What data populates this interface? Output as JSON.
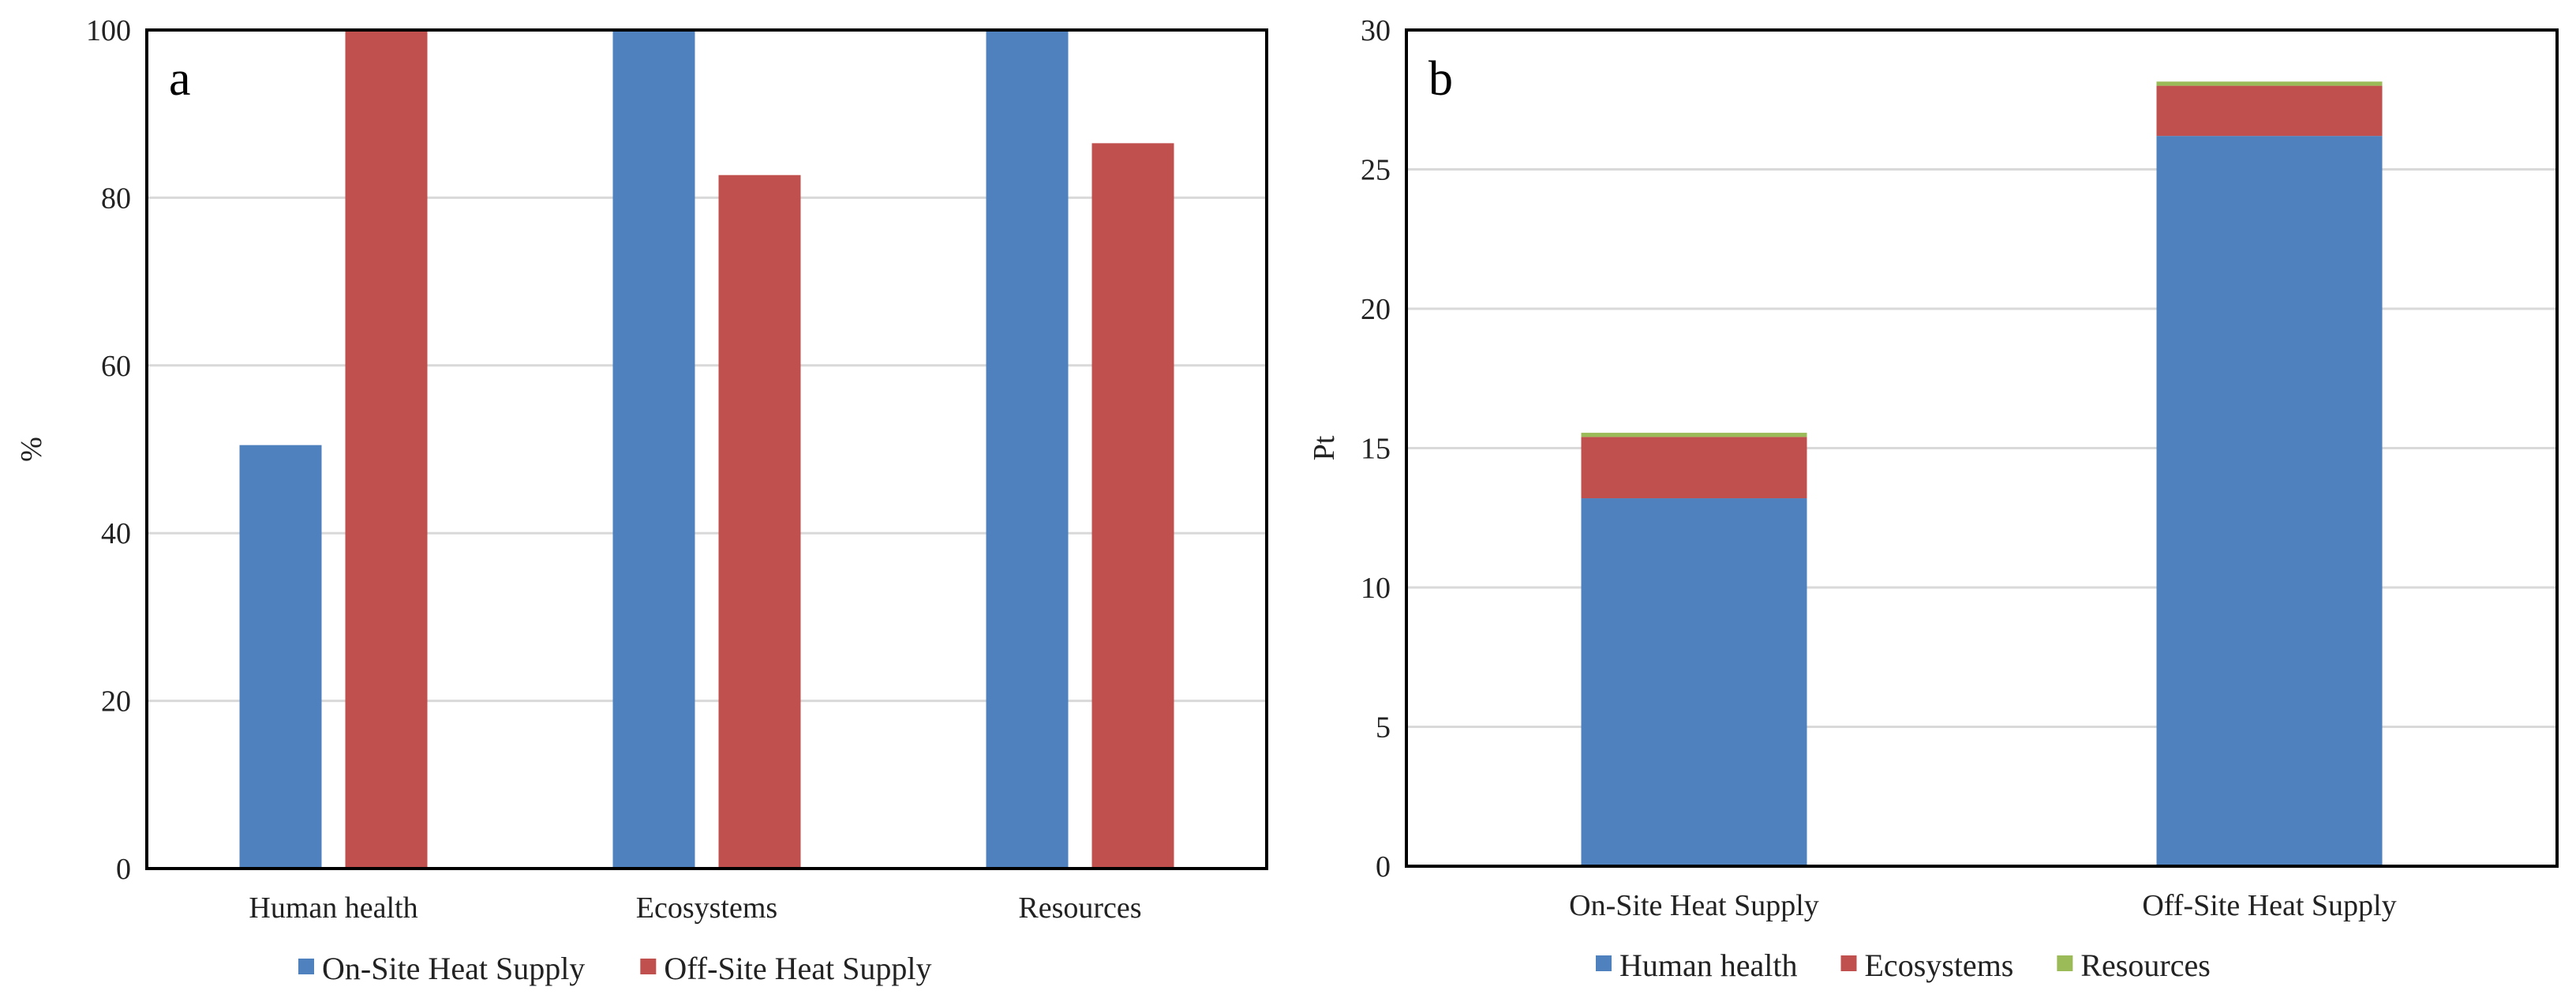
{
  "colors": {
    "blue": "#4e81bd",
    "red": "#c0504d",
    "green": "#9bbb59",
    "grid": "#d9d9d9",
    "axis": "#000000"
  },
  "chart_data": [
    {
      "type": "bar",
      "panel_label": "a",
      "title": "",
      "xlabel": "",
      "ylabel": "%",
      "ylim": [
        0,
        100
      ],
      "yticks": [
        "0",
        "20",
        "40",
        "60",
        "80",
        "100"
      ],
      "categories": [
        "Human health",
        "Ecosystems",
        "Resources"
      ],
      "series": [
        {
          "name": "On-Site Heat Supply",
          "color": "#4e81bd",
          "values": [
            50.5,
            100,
            100
          ]
        },
        {
          "name": "Off-Site Heat Supply",
          "color": "#c0504d",
          "values": [
            100,
            82.7,
            86.5
          ]
        }
      ],
      "legend_position": "bottom",
      "grid": true
    },
    {
      "type": "bar",
      "stacked": true,
      "panel_label": "b",
      "title": "",
      "xlabel": "",
      "ylabel": "Pt",
      "ylim": [
        0,
        30
      ],
      "yticks": [
        "0",
        "5",
        "10",
        "15",
        "20",
        "25",
        "30"
      ],
      "categories": [
        "On-Site Heat Supply",
        "Off-Site Heat Supply"
      ],
      "series": [
        {
          "name": "Human health",
          "color": "#4e81bd",
          "values": [
            13.2,
            26.2
          ]
        },
        {
          "name": "Ecosystems",
          "color": "#c0504d",
          "values": [
            2.2,
            1.8
          ]
        },
        {
          "name": "Resources",
          "color": "#9bbb59",
          "values": [
            0.15,
            0.15
          ]
        }
      ],
      "legend_position": "bottom",
      "grid": true
    }
  ]
}
